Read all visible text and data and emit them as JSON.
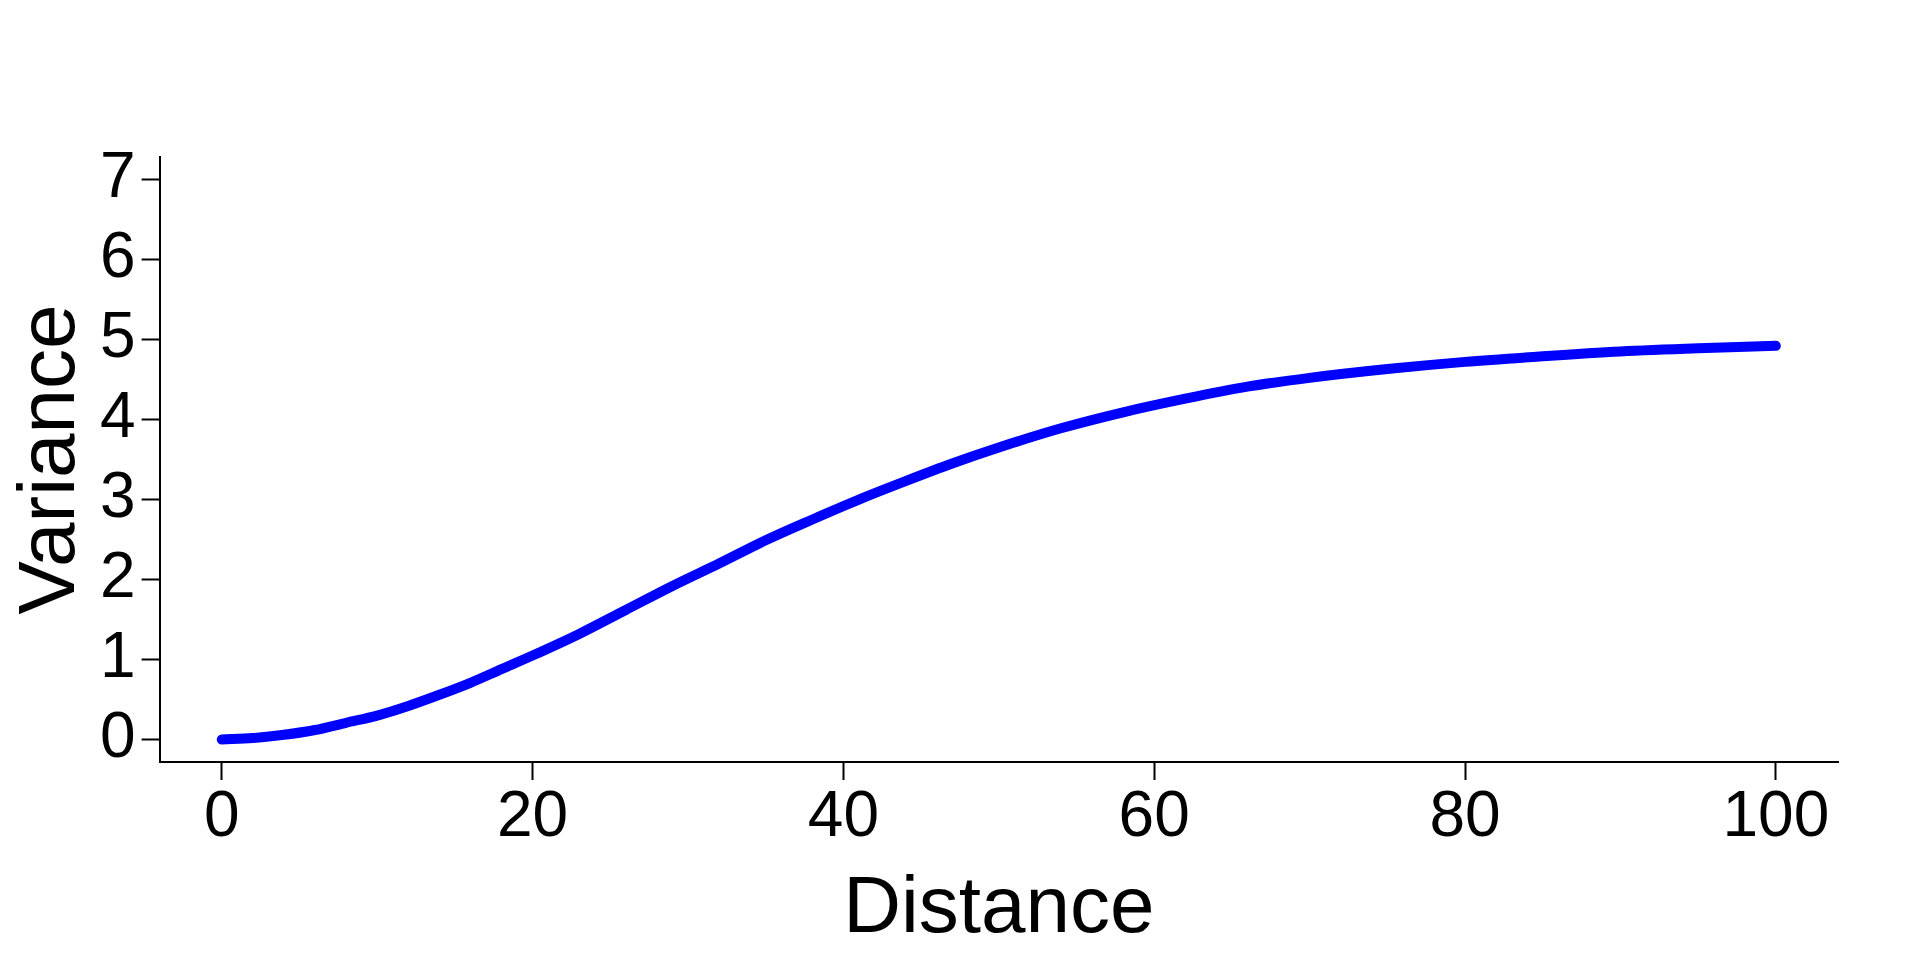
{
  "chart_data": {
    "type": "line",
    "xlabel": "Distance",
    "ylabel": "Variance",
    "x": [
      0,
      2,
      4,
      6,
      8,
      10,
      12,
      14,
      16,
      18,
      20,
      23,
      26,
      29,
      32,
      35,
      38,
      41,
      44,
      47,
      50,
      54,
      58,
      62,
      66,
      70,
      75,
      80,
      85,
      90,
      95,
      100
    ],
    "values": [
      0,
      0.02,
      0.06,
      0.12,
      0.21,
      0.3,
      0.42,
      0.56,
      0.71,
      0.88,
      1.05,
      1.32,
      1.62,
      1.92,
      2.2,
      2.49,
      2.75,
      3.0,
      3.23,
      3.45,
      3.65,
      3.89,
      4.09,
      4.26,
      4.41,
      4.52,
      4.63,
      4.72,
      4.79,
      4.85,
      4.89,
      4.92
    ],
    "color": "#0000ff",
    "xlim": [
      -4,
      104
    ],
    "ylim": [
      -0.28,
      7.28
    ],
    "xticks": [
      0,
      20,
      40,
      60,
      80,
      100
    ],
    "yticks": [
      0,
      1,
      2,
      3,
      4,
      5,
      6,
      7
    ]
  }
}
